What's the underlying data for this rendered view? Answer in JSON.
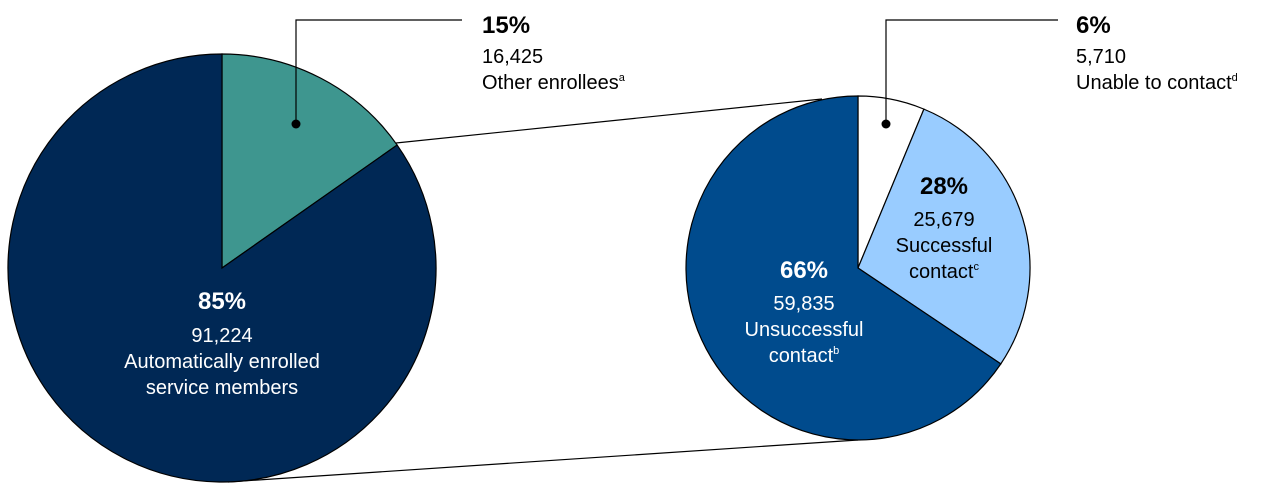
{
  "chart_data": [
    {
      "type": "pie",
      "slices": [
        {
          "label": "Automatically enrolled service members",
          "label_lines": [
            "Automatically enrolled",
            "service members"
          ],
          "percent_label": "85%",
          "value": 91224,
          "value_label": "91,224",
          "percent": 85,
          "color": "#002855"
        },
        {
          "label": "Other enrollees",
          "label_lines": [
            "Other enrollees"
          ],
          "footnote": "a",
          "percent_label": "15%",
          "value": 16425,
          "value_label": "16,425",
          "percent": 15,
          "color": "#3e968f"
        }
      ]
    },
    {
      "type": "pie",
      "slices": [
        {
          "label": "Unable to contact",
          "label_lines": [
            "Unable to contact"
          ],
          "footnote": "d",
          "percent_label": "6%",
          "value": 5710,
          "value_label": "5,710",
          "percent": 6,
          "color": "#ffffff"
        },
        {
          "label": "Successful contact",
          "label_lines": [
            "Successful",
            "contact"
          ],
          "footnote": "c",
          "percent_label": "28%",
          "value": 25679,
          "value_label": "25,679",
          "percent": 28,
          "color": "#99ccff"
        },
        {
          "label": "Unsuccessful contact",
          "label_lines": [
            "Unsuccessful",
            "contact"
          ],
          "footnote": "b",
          "percent_label": "66%",
          "value": 59835,
          "value_label": "59,835",
          "percent": 66,
          "color": "#004b8d"
        }
      ]
    }
  ]
}
